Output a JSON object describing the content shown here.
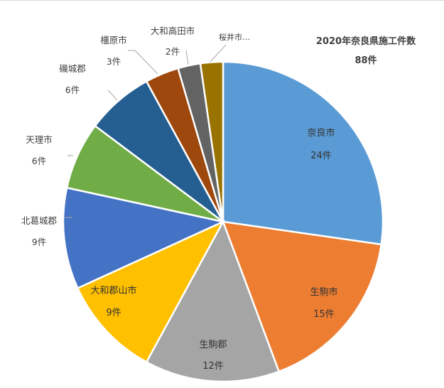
{
  "chart_data": {
    "type": "pie",
    "title": "2020年奈良県施工件数",
    "total_label": "88件",
    "total": 88,
    "start_angle_deg": 0,
    "direction": "clockwise",
    "slices": [
      {
        "label": "奈良市",
        "value": 24,
        "value_label": "24件",
        "color": "#5b9bd5"
      },
      {
        "label": "生駒市",
        "value": 15,
        "value_label": "15件",
        "color": "#ed7d31"
      },
      {
        "label": "生駒郡",
        "value": 12,
        "value_label": "12件",
        "color": "#a5a5a5"
      },
      {
        "label": "大和郡山市",
        "value": 9,
        "value_label": "9件",
        "color": "#ffc000"
      },
      {
        "label": "北葛城郡",
        "value": 9,
        "value_label": "9件",
        "color": "#4472c4"
      },
      {
        "label": "天理市",
        "value": 6,
        "value_label": "6件",
        "color": "#70ad47"
      },
      {
        "label": "磯城郡",
        "value": 6,
        "value_label": "6件",
        "color": "#255e91"
      },
      {
        "label": "橿原市",
        "value": 3,
        "value_label": "3件",
        "color": "#9e480e"
      },
      {
        "label": "大和高田市",
        "value": 2,
        "value_label": "2件",
        "color": "#636363"
      },
      {
        "label": "桜井市…",
        "value": 2,
        "value_label": "",
        "color": "#997300"
      }
    ]
  }
}
